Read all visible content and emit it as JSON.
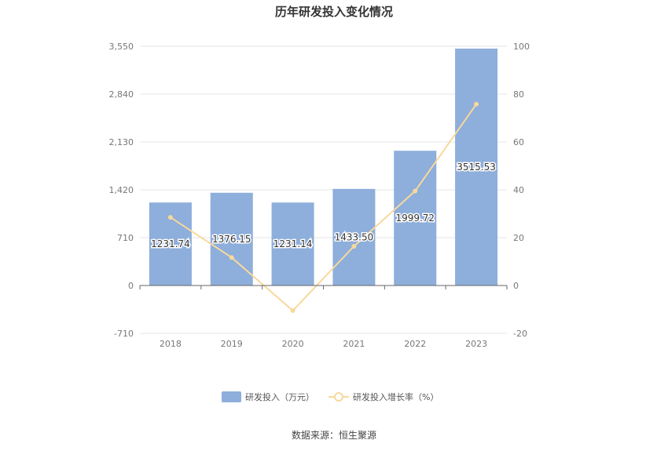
{
  "chart_data": {
    "type": "bar",
    "title": "历年研发投入变化情况",
    "categories": [
      "2018",
      "2019",
      "2020",
      "2021",
      "2022",
      "2023"
    ],
    "series": [
      {
        "name": "研发投入（万元）",
        "type": "bar",
        "axis": "left",
        "values": [
          1231.74,
          1376.15,
          1231.14,
          1433.5,
          1999.72,
          3515.53
        ],
        "labels": [
          "1231.74",
          "1376.15",
          "1231.14",
          "1433.50",
          "1999.72",
          "3515.53"
        ]
      },
      {
        "name": "研发投入增长率（%）",
        "type": "line",
        "axis": "right",
        "values": [
          28.5,
          11.7,
          -10.5,
          16.4,
          39.5,
          75.8
        ]
      }
    ],
    "y_left": {
      "ticks": [
        -710,
        0,
        710,
        1420,
        2130,
        2840,
        3550
      ],
      "tick_labels": [
        "-710",
        "0",
        "710",
        "1,420",
        "2,130",
        "2,840",
        "3,550"
      ],
      "ylim": [
        -710,
        3550
      ]
    },
    "y_right": {
      "ticks": [
        -20,
        0,
        20,
        40,
        60,
        80,
        100
      ],
      "tick_labels": [
        "-20",
        "0",
        "20",
        "40",
        "60",
        "80",
        "100"
      ],
      "ylim": [
        -20,
        100
      ]
    },
    "grid": true,
    "legend_position": "bottom",
    "colors": {
      "bar": "#8eaedb",
      "line": "#f7d99c",
      "grid": "#e6e6e6",
      "axis": "#666666"
    }
  },
  "source_text": "数据来源：恒生聚源"
}
